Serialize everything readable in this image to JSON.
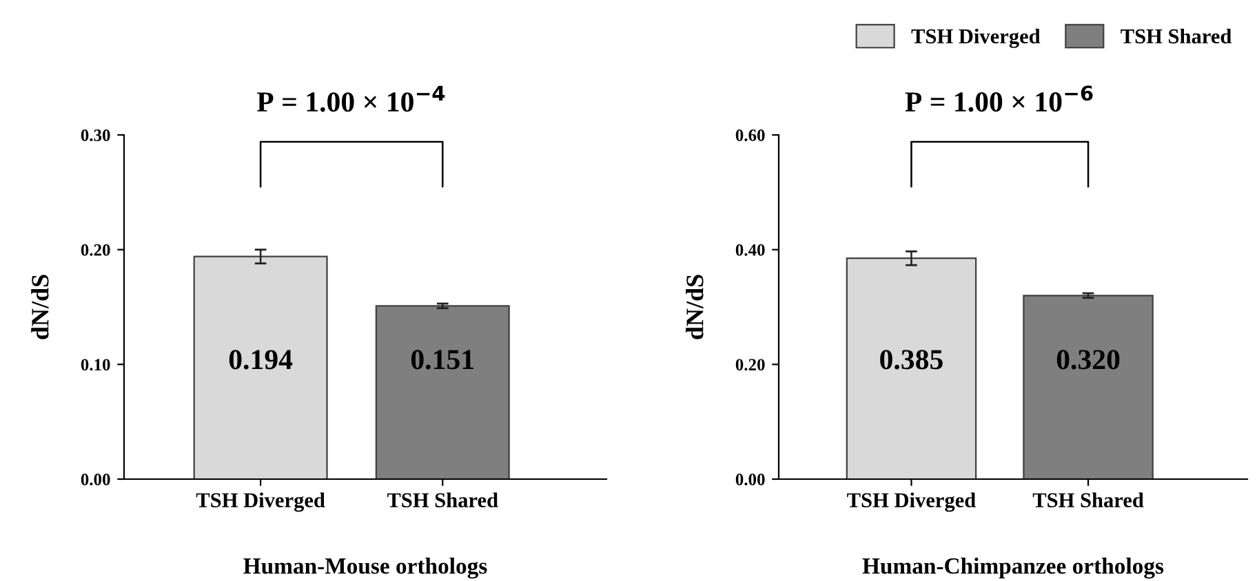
{
  "chart_data": [
    {
      "type": "bar",
      "categories": [
        "TSH Diverged",
        "TSH Shared"
      ],
      "series": [
        {
          "name": "TSH Diverged",
          "color": "#d9d9d9",
          "values": [
            0.194,
            null
          ],
          "errors": [
            0.006,
            null
          ],
          "value_labels": [
            "0.194",
            null
          ]
        },
        {
          "name": "TSH Shared",
          "color": "#7f7f7f",
          "values": [
            null,
            0.151
          ],
          "errors": [
            null,
            0.002
          ],
          "value_labels": [
            null,
            "0.151"
          ]
        }
      ],
      "ylabel": "dN/dS",
      "xlabel": "Human-Mouse orthologs",
      "ylim": [
        0,
        0.3
      ],
      "yticks": [
        {
          "value": 0,
          "label": "0.00"
        },
        {
          "value": 0.1,
          "label": "0.10"
        },
        {
          "value": 0.2,
          "label": "0.20"
        },
        {
          "value": 0.3,
          "label": "0.30"
        }
      ],
      "annotations": [
        "P = 1.00 × 10$^{−4}$"
      ],
      "legend": "top right"
    },
    {
      "type": "bar",
      "categories": [
        "TSH Diverged",
        "TSH Shared"
      ],
      "series": [
        {
          "color": "#d9d9d9",
          "values": [
            0.385,
            null
          ],
          "errors": [
            0.012,
            null
          ],
          "value_labels": [
            "0.385",
            null
          ]
        },
        {
          "color": "#7f7f7f",
          "values": [
            null,
            0.32
          ],
          "errors": [
            null,
            0.004
          ],
          "value_labels": [
            null,
            "0.320"
          ]
        }
      ],
      "ylabel": "dN/dS",
      "xlabel": "Human-Chimpanzee orthologs",
      "ylim": [
        0,
        0.6
      ],
      "yticks": [
        {
          "value": 0,
          "label": "0.00"
        },
        {
          "value": 0.2,
          "label": "0.20"
        },
        {
          "value": 0.4,
          "label": "0.40"
        },
        {
          "value": 0.6,
          "label": "0.60"
        }
      ],
      "annotations": [
        "P = 1.00 × 10$^{−6}$"
      ]
    }
  ]
}
